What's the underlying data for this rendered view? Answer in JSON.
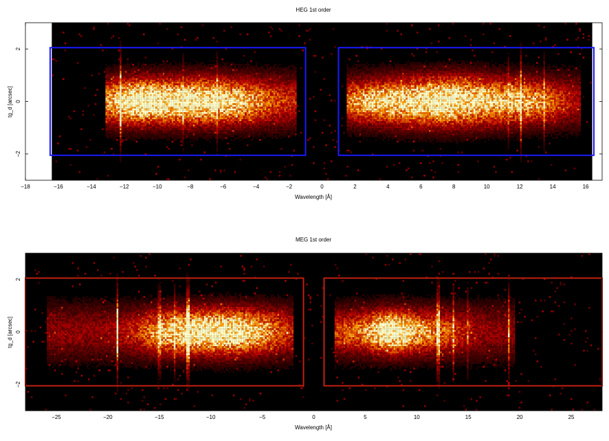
{
  "chart_data": [
    {
      "id": "heg",
      "type": "heatmap",
      "title": "HEG 1st order",
      "xlabel": "Wavelength [Å]",
      "ylabel": "tg_d [arcsec]",
      "xlim": [
        -18,
        17
      ],
      "ylim": [
        -3,
        3
      ],
      "data_xrange": [
        -16.4,
        16.4
      ],
      "xticks": [
        -18,
        -16,
        -14,
        -12,
        -10,
        -8,
        -6,
        -4,
        -2,
        0,
        2,
        4,
        6,
        8,
        10,
        12,
        14,
        16
      ],
      "yticks": [
        -2,
        0,
        2
      ],
      "colormap": "heat",
      "background": "#000000",
      "regions": [
        {
          "x": [
            -16.5,
            -1.0
          ],
          "y": [
            -2.05,
            2.05
          ],
          "color": "#1a1aff"
        },
        {
          "x": [
            1.0,
            16.5
          ],
          "y": [
            -2.05,
            2.05
          ],
          "color": "#1a1aff"
        }
      ],
      "emission_blobs": [
        {
          "x": -7.5,
          "y": 0,
          "sx": 3.2,
          "sy": 0.55,
          "amp": 1.0
        },
        {
          "x": -11.5,
          "y": 0,
          "sx": 1.4,
          "sy": 0.5,
          "amp": 0.6
        },
        {
          "x": 7.5,
          "y": 0,
          "sx": 2.6,
          "sy": 0.6,
          "amp": 1.0
        },
        {
          "x": 3.0,
          "y": 0,
          "sx": 1.5,
          "sy": 0.45,
          "amp": 0.55
        },
        {
          "x": 12.5,
          "y": 0,
          "sx": 1.5,
          "sy": 0.5,
          "amp": 0.5
        }
      ],
      "continuum_range": [
        [
          -13.2,
          -1.5
        ],
        [
          1.5,
          15.7
        ]
      ],
      "lines": [
        {
          "x": -12.2,
          "amp": 1.0
        },
        {
          "x": -6.4,
          "amp": 0.4
        },
        {
          "x": -8.4,
          "amp": 0.3
        },
        {
          "x": 12.1,
          "amp": 0.9
        },
        {
          "x": 13.5,
          "amp": 0.4
        },
        {
          "x": 11.3,
          "amp": 0.3
        }
      ]
    },
    {
      "id": "meg",
      "type": "heatmap",
      "title": "MEG 1st order",
      "xlabel": "Wavelength [Å]",
      "ylabel": "tg_d [arcsec]",
      "xlim": [
        -28,
        28
      ],
      "ylim": [
        -3,
        3
      ],
      "data_xrange": [
        -28,
        28
      ],
      "xticks": [
        -25,
        -20,
        -15,
        -10,
        -5,
        0,
        5,
        10,
        15,
        20,
        25
      ],
      "yticks": [
        -2,
        0,
        2
      ],
      "colormap": "heat",
      "background": "#000000",
      "regions": [
        {
          "x": [
            -28,
            -1.0
          ],
          "y": [
            -2.05,
            2.05
          ],
          "color": "#c02010"
        },
        {
          "x": [
            1.0,
            28
          ],
          "y": [
            -2.05,
            2.05
          ],
          "color": "#c02010"
        }
      ],
      "emission_blobs": [
        {
          "x": -8.5,
          "y": 0,
          "sx": 3.6,
          "sy": 0.55,
          "amp": 1.0
        },
        {
          "x": -14.0,
          "y": 0,
          "sx": 2.5,
          "sy": 0.5,
          "amp": 0.45
        },
        {
          "x": 7.5,
          "y": 0,
          "sx": 1.6,
          "sy": 0.5,
          "amp": 1.0
        },
        {
          "x": 3.5,
          "y": 0,
          "sx": 1.8,
          "sy": 0.45,
          "amp": 0.35
        },
        {
          "x": 11.5,
          "y": 0,
          "sx": 2.2,
          "sy": 0.5,
          "amp": 0.45
        }
      ],
      "continuum_range": [
        [
          -26.0,
          -2.0
        ],
        [
          2.0,
          19.5
        ]
      ],
      "lines": [
        {
          "x": -19.0,
          "amp": 1.0
        },
        {
          "x": -12.2,
          "amp": 0.9
        },
        {
          "x": -15.0,
          "amp": 0.4
        },
        {
          "x": -13.5,
          "amp": 0.4
        },
        {
          "x": 12.1,
          "amp": 0.7
        },
        {
          "x": 13.5,
          "amp": 0.5
        },
        {
          "x": 15.0,
          "amp": 0.35
        },
        {
          "x": 19.0,
          "amp": 0.6
        }
      ]
    }
  ]
}
